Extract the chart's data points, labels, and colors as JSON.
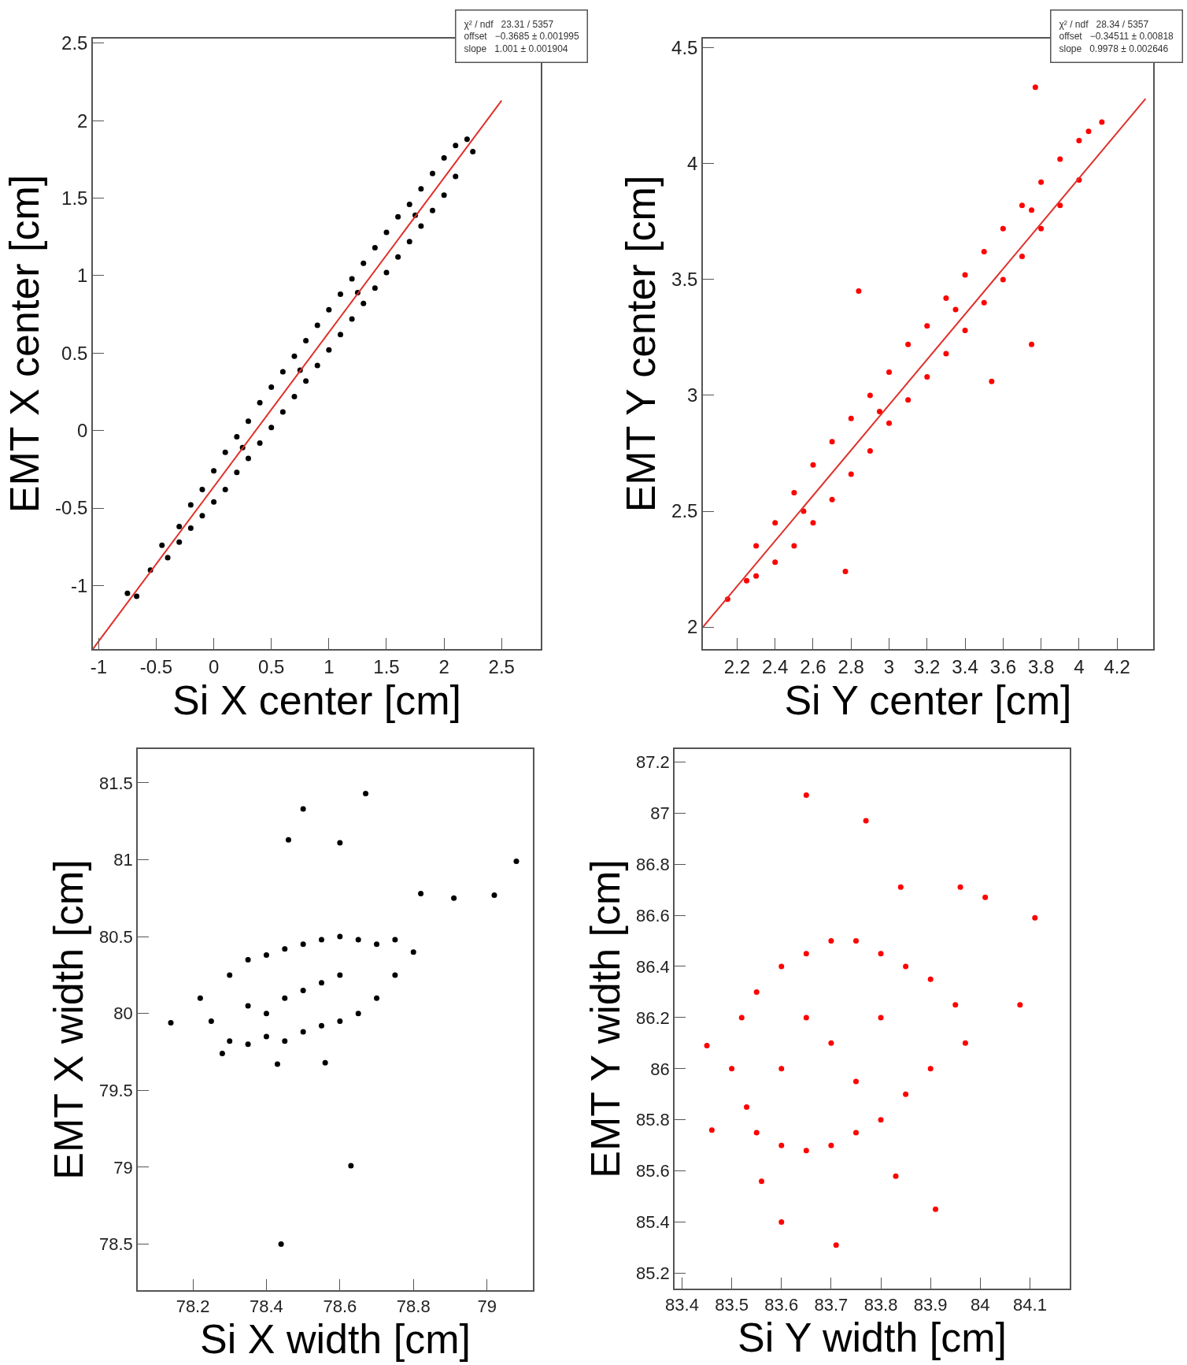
{
  "chart_data": [
    {
      "type": "scatter",
      "xlabel": "Si X center [cm]",
      "ylabel": "EMT X center [cm]",
      "xlim": [
        -1.05,
        2.84
      ],
      "ylim": [
        -1.41,
        2.53
      ],
      "xticks": [
        -1,
        -0.5,
        0,
        0.5,
        1,
        1.5,
        2,
        2.5
      ],
      "yticks": [
        -1,
        -0.5,
        0,
        0.5,
        1,
        1.5,
        2,
        2.5
      ],
      "annotations": [
        "χ² / ndf   23.31 / 5357",
        "offset   −0.3685 ± 0.001995",
        "slope   1.001 ± 0.001904"
      ],
      "series": [
        {
          "marker": "circle",
          "color": "#000000",
          "x": [
            -0.75,
            -0.67,
            -0.55,
            -0.45,
            -0.4,
            -0.3,
            -0.3,
            -0.2,
            -0.2,
            -0.1,
            -0.1,
            0,
            0,
            0.1,
            0.1,
            0.2,
            0.2,
            0.25,
            0.3,
            0.3,
            0.4,
            0.4,
            0.5,
            0.5,
            0.6,
            0.6,
            0.7,
            0.7,
            0.75,
            0.8,
            0.8,
            0.9,
            0.9,
            1.0,
            1.0,
            1.1,
            1.1,
            1.2,
            1.2,
            1.25,
            1.3,
            1.3,
            1.4,
            1.4,
            1.5,
            1.5,
            1.6,
            1.6,
            1.7,
            1.7,
            1.75,
            1.8,
            1.8,
            1.9,
            1.9,
            2.0,
            2.0,
            2.1,
            2.1,
            2.2,
            2.25
          ],
          "values": [
            -1.05,
            -1.07,
            -0.9,
            -0.74,
            -0.82,
            -0.62,
            -0.72,
            -0.48,
            -0.63,
            -0.38,
            -0.55,
            -0.26,
            -0.46,
            -0.14,
            -0.38,
            -0.04,
            -0.27,
            -0.11,
            0.06,
            -0.18,
            0.18,
            -0.08,
            0.28,
            0.02,
            0.38,
            0.12,
            0.48,
            0.22,
            0.39,
            0.58,
            0.32,
            0.68,
            0.42,
            0.78,
            0.52,
            0.88,
            0.62,
            0.98,
            0.72,
            0.89,
            1.08,
            0.82,
            1.18,
            0.92,
            1.28,
            1.02,
            1.38,
            1.12,
            1.46,
            1.22,
            1.39,
            1.56,
            1.32,
            1.66,
            1.42,
            1.76,
            1.52,
            1.84,
            1.64,
            1.88,
            1.8
          ]
        },
        {
          "type": "line",
          "color": "#e0302a",
          "line_style": "solid",
          "x": [
            -1.05,
            2.5
          ],
          "values": [
            -1.41,
            2.13
          ]
        }
      ]
    },
    {
      "type": "scatter",
      "xlabel": "Si Y center [cm]",
      "ylabel": "EMT Y center [cm]",
      "xlim": [
        2.02,
        4.39
      ],
      "ylim": [
        1.905,
        4.54
      ],
      "xticks": [
        2.2,
        2.4,
        2.6,
        2.8,
        3,
        3.2,
        3.4,
        3.6,
        3.8,
        4,
        4.2
      ],
      "yticks": [
        2,
        2.5,
        3,
        3.5,
        4,
        4.5
      ],
      "annotations": [
        "χ² / ndf   28.34 / 5357",
        "offset   −0.34511 ± 0.00818",
        "slope   0.9978 ± 0.002646"
      ],
      "series": [
        {
          "marker": "circle",
          "color": "#ff0000",
          "x": [
            2.15,
            2.25,
            2.3,
            2.3,
            2.4,
            2.4,
            2.5,
            2.5,
            2.55,
            2.6,
            2.6,
            2.7,
            2.7,
            2.77,
            2.8,
            2.8,
            2.84,
            2.9,
            2.9,
            2.95,
            3.0,
            3.0,
            3.1,
            3.1,
            3.2,
            3.2,
            3.3,
            3.3,
            3.35,
            3.4,
            3.4,
            3.5,
            3.5,
            3.54,
            3.6,
            3.6,
            3.7,
            3.7,
            3.75,
            3.75,
            3.77,
            3.8,
            3.8,
            3.9,
            3.9,
            4.0,
            4.0,
            4.05,
            4.12
          ],
          "values": [
            2.12,
            2.2,
            2.35,
            2.22,
            2.45,
            2.28,
            2.58,
            2.35,
            2.5,
            2.7,
            2.45,
            2.8,
            2.55,
            2.24,
            2.9,
            2.66,
            3.45,
            3.0,
            2.76,
            2.93,
            3.1,
            2.88,
            3.22,
            2.98,
            3.3,
            3.08,
            3.42,
            3.18,
            3.37,
            3.52,
            3.28,
            3.62,
            3.4,
            3.06,
            3.72,
            3.5,
            3.82,
            3.6,
            3.8,
            3.22,
            4.33,
            3.92,
            3.72,
            4.02,
            3.82,
            4.1,
            3.93,
            4.14,
            4.18
          ]
        },
        {
          "type": "line",
          "color": "#e0302a",
          "line_style": "solid",
          "x": [
            2.02,
            4.35
          ],
          "values": [
            2.0,
            4.28
          ]
        }
      ]
    },
    {
      "type": "scatter",
      "xlabel": "Si X width [cm]",
      "ylabel": "EMT X width [cm]",
      "xlim": [
        78.05,
        79.125
      ],
      "ylim": [
        78.2,
        81.72
      ],
      "xticks": [
        78.2,
        78.4,
        78.6,
        78.8,
        79
      ],
      "yticks": [
        78.5,
        79,
        79.5,
        80,
        80.5,
        81,
        81.5
      ],
      "marker": "circle",
      "series": [
        {
          "color": "#000000",
          "x": [
            78.14,
            78.22,
            78.25,
            78.28,
            78.3,
            78.3,
            78.35,
            78.35,
            78.35,
            78.4,
            78.4,
            78.4,
            78.43,
            78.44,
            78.45,
            78.45,
            78.45,
            78.46,
            78.5,
            78.5,
            78.5,
            78.5,
            78.55,
            78.55,
            78.55,
            78.56,
            78.6,
            78.6,
            78.6,
            78.6,
            78.63,
            78.65,
            78.65,
            78.67,
            78.7,
            78.7,
            78.75,
            78.75,
            78.8,
            78.82,
            78.91,
            79.02,
            79.08
          ],
          "values": [
            79.94,
            80.1,
            79.95,
            79.74,
            80.25,
            79.82,
            80.35,
            79.8,
            80.05,
            80.38,
            79.85,
            80.0,
            79.67,
            78.5,
            80.42,
            79.82,
            80.1,
            81.13,
            80.45,
            79.88,
            80.15,
            81.33,
            80.48,
            79.92,
            80.2,
            79.68,
            80.5,
            79.95,
            80.25,
            81.11,
            79.01,
            80.48,
            80.0,
            81.43,
            80.45,
            80.1,
            80.48,
            80.25,
            80.4,
            80.78,
            80.75,
            80.77,
            80.99
          ]
        }
      ]
    },
    {
      "type": "scatter",
      "xlabel": "Si Y width [cm]",
      "ylabel": "EMT Y width [cm]",
      "xlim": [
        83.385,
        84.18
      ],
      "ylim": [
        85.14,
        87.25
      ],
      "xticks": [
        83.4,
        83.5,
        83.6,
        83.7,
        83.8,
        83.9,
        84,
        84.1
      ],
      "yticks": [
        85.2,
        85.4,
        85.6,
        85.8,
        86,
        86.2,
        86.4,
        86.6,
        86.8,
        87,
        87.2
      ],
      "marker": "circle",
      "series": [
        {
          "color": "#ff0000",
          "x": [
            83.45,
            83.46,
            83.5,
            83.52,
            83.53,
            83.55,
            83.55,
            83.56,
            83.6,
            83.6,
            83.6,
            83.6,
            83.65,
            83.65,
            83.65,
            83.65,
            83.7,
            83.7,
            83.7,
            83.71,
            83.75,
            83.75,
            83.75,
            83.77,
            83.8,
            83.8,
            83.8,
            83.83,
            83.84,
            83.85,
            83.85,
            83.9,
            83.9,
            83.91,
            83.95,
            83.96,
            83.97,
            84.01,
            84.08,
            84.11
          ],
          "values": [
            86.09,
            85.76,
            86.0,
            86.2,
            85.85,
            86.3,
            85.75,
            85.56,
            86.4,
            85.7,
            86.0,
            85.4,
            86.45,
            85.68,
            86.2,
            87.07,
            86.5,
            85.7,
            86.1,
            85.31,
            86.5,
            85.75,
            85.95,
            86.97,
            86.45,
            85.8,
            86.2,
            85.58,
            86.71,
            86.4,
            85.9,
            86.35,
            86.0,
            85.45,
            86.25,
            86.71,
            86.1,
            86.67,
            86.25,
            86.59
          ]
        }
      ]
    }
  ]
}
